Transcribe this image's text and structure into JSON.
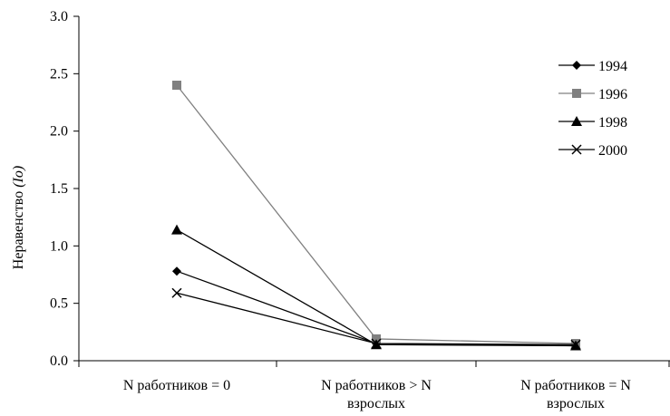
{
  "chart_data": {
    "type": "line",
    "categories": [
      [
        "N работников = 0"
      ],
      [
        "N работников > N",
        "взрослых"
      ],
      [
        "N работников = N",
        "взрослых"
      ]
    ],
    "ylabel_main": "Неравенство ",
    "ylabel_italic": "(Io)",
    "ylim": [
      0,
      3.0
    ],
    "yticks": [
      "0.0",
      "0.5",
      "1.0",
      "1.5",
      "2.0",
      "2.5",
      "3.0"
    ],
    "grid": false,
    "legend_position": "top-right",
    "series": [
      {
        "name": "1994",
        "values": [
          0.78,
          0.15,
          0.13
        ],
        "color": "#000000",
        "marker": "diamond"
      },
      {
        "name": "1996",
        "values": [
          2.4,
          0.19,
          0.15
        ],
        "color": "#808080",
        "marker": "square"
      },
      {
        "name": "1998",
        "values": [
          1.14,
          0.14,
          0.13
        ],
        "color": "#000000",
        "marker": "triangle"
      },
      {
        "name": "2000",
        "values": [
          0.59,
          0.15,
          0.14
        ],
        "color": "#000000",
        "marker": "x"
      }
    ]
  }
}
